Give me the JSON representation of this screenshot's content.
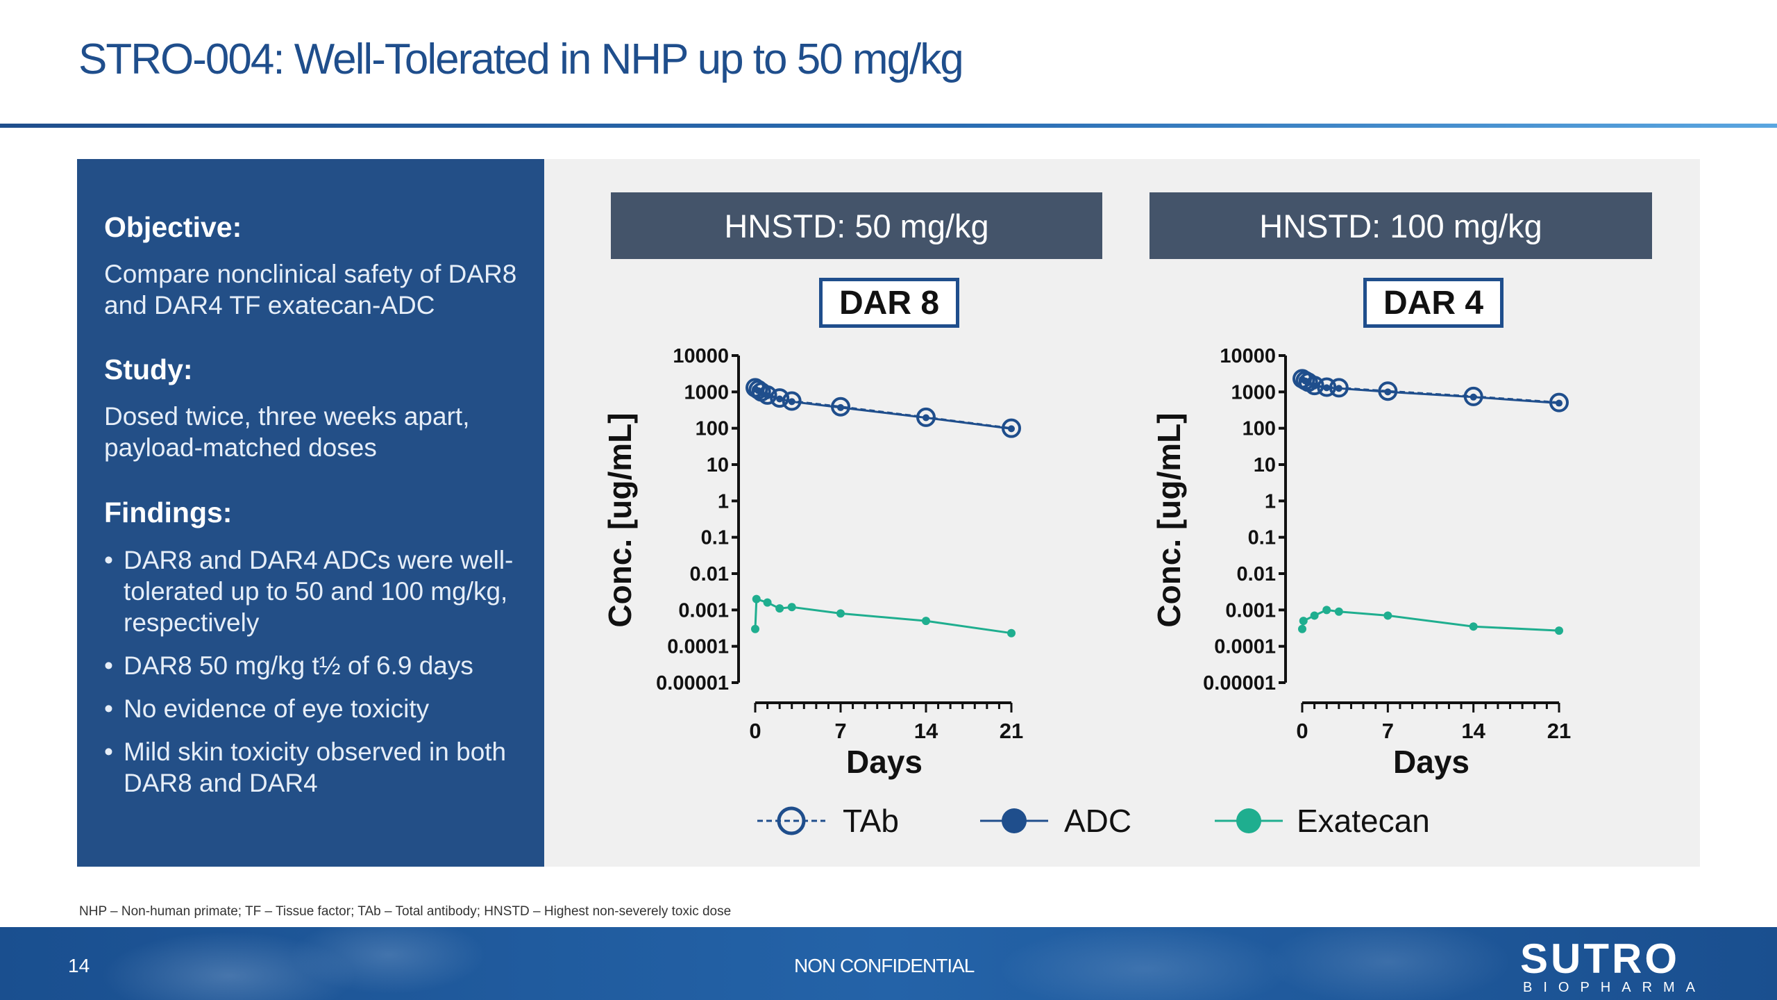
{
  "title": "STRO-004: Well-Tolerated in NHP up to 50 mg/kg",
  "left_panel": {
    "objective_heading": "Objective:",
    "objective_text": "Compare nonclinical safety of DAR8 and DAR4 TF exatecan-ADC",
    "study_heading": "Study:",
    "study_text": "Dosed twice, three weeks apart, payload-matched doses",
    "findings_heading": "Findings:",
    "bullet_char": "•",
    "findings": [
      "DAR8 and DAR4 ADCs were well-tolerated up to 50 and 100 mg/kg, respectively",
      "DAR8 50 mg/kg t½ of 6.9 days",
      "No evidence of eye toxicity",
      "Mild skin toxicity observed in both DAR8 and DAR4"
    ]
  },
  "legend": [
    {
      "label": "TAb",
      "style": "dashed-open-circle",
      "color": "#1f4e8c"
    },
    {
      "label": "ADC",
      "style": "solid-filled-circle",
      "color": "#1f4e8c"
    },
    {
      "label": "Exatecan",
      "style": "solid-filled-circle",
      "color": "#1fae8f"
    }
  ],
  "colors": {
    "tab": "#1f4e8c",
    "adc": "#1f4e8c",
    "exatecan": "#1fae8f",
    "header_box": "#44546a",
    "left_panel": "#234f87"
  },
  "chart_data": [
    {
      "type": "line",
      "header": "HNSTD: 50 mg/kg",
      "label": "DAR 8",
      "xlabel": "Days",
      "ylabel": "Conc. [ug/mL]",
      "y_scale": "log",
      "ylim": [
        1e-05,
        10000
      ],
      "xlim": [
        0,
        21
      ],
      "x_ticks": [
        "0",
        "7",
        "14",
        "21"
      ],
      "y_ticks": [
        "10000",
        "1000",
        "100",
        "10",
        "1",
        "0.1",
        "0.01",
        "0.001",
        "0.0001",
        "0.00001"
      ],
      "series": [
        {
          "name": "TAb",
          "x": [
            0,
            0.25,
            0.5,
            1,
            2,
            3,
            7,
            14,
            21
          ],
          "values": [
            1300,
            1150,
            1000,
            820,
            680,
            560,
            390,
            200,
            100
          ]
        },
        {
          "name": "ADC",
          "x": [
            0,
            0.25,
            0.5,
            1,
            2,
            3,
            7,
            14,
            21
          ],
          "values": [
            1200,
            1080,
            950,
            780,
            640,
            540,
            370,
            195,
            97
          ]
        },
        {
          "name": "Exatecan",
          "x": [
            0,
            0.1,
            1,
            2,
            3,
            7,
            14,
            21
          ],
          "values": [
            0.0003,
            0.002,
            0.0016,
            0.0011,
            0.0012,
            0.0008,
            0.0005,
            0.00023
          ]
        }
      ]
    },
    {
      "type": "line",
      "header": "HNSTD: 100 mg/kg",
      "label": "DAR 4",
      "xlabel": "Days",
      "ylabel": "Conc. [ug/mL]",
      "y_scale": "log",
      "ylim": [
        1e-05,
        10000
      ],
      "xlim": [
        0,
        21
      ],
      "x_ticks": [
        "0",
        "7",
        "14",
        "21"
      ],
      "y_ticks": [
        "10000",
        "1000",
        "100",
        "10",
        "1",
        "0.1",
        "0.01",
        "0.001",
        "0.0001",
        "0.00001"
      ],
      "series": [
        {
          "name": "TAb",
          "x": [
            0,
            0.25,
            0.5,
            1,
            2,
            3,
            7,
            14,
            21
          ],
          "values": [
            2300,
            2050,
            1850,
            1500,
            1350,
            1300,
            1050,
            750,
            510
          ]
        },
        {
          "name": "ADC",
          "x": [
            0,
            0.25,
            0.5,
            1,
            2,
            3,
            7,
            14,
            21
          ],
          "values": [
            2200,
            2000,
            1800,
            1450,
            1300,
            1250,
            1000,
            720,
            490
          ]
        },
        {
          "name": "Exatecan",
          "x": [
            0,
            0.1,
            1,
            2,
            3,
            7,
            14,
            21
          ],
          "values": [
            0.0003,
            0.0005,
            0.0007,
            0.001,
            0.0009,
            0.0007,
            0.00035,
            0.00027
          ]
        }
      ]
    }
  ],
  "footnote": "NHP – Non-human primate; TF – Tissue factor; TAb – Total antibody; HNSTD – Highest non-severely toxic dose",
  "footer": {
    "page_number": "14",
    "confidentiality": "NON CONFIDENTIAL",
    "logo_main": "SUTRO",
    "logo_sub": "BIOPHARMA"
  }
}
